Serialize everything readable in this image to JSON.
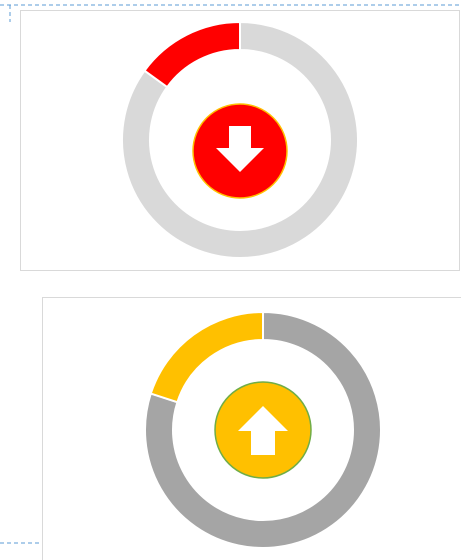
{
  "chart_data": [
    {
      "type": "doughnut",
      "values": [
        85,
        15
      ],
      "colors": [
        "#d9d9d9",
        "#ff0000"
      ]
    },
    {
      "type": "doughnut",
      "values": [
        80,
        20
      ],
      "colors": [
        "#a5a5a5",
        "#ffc000"
      ]
    }
  ]
}
